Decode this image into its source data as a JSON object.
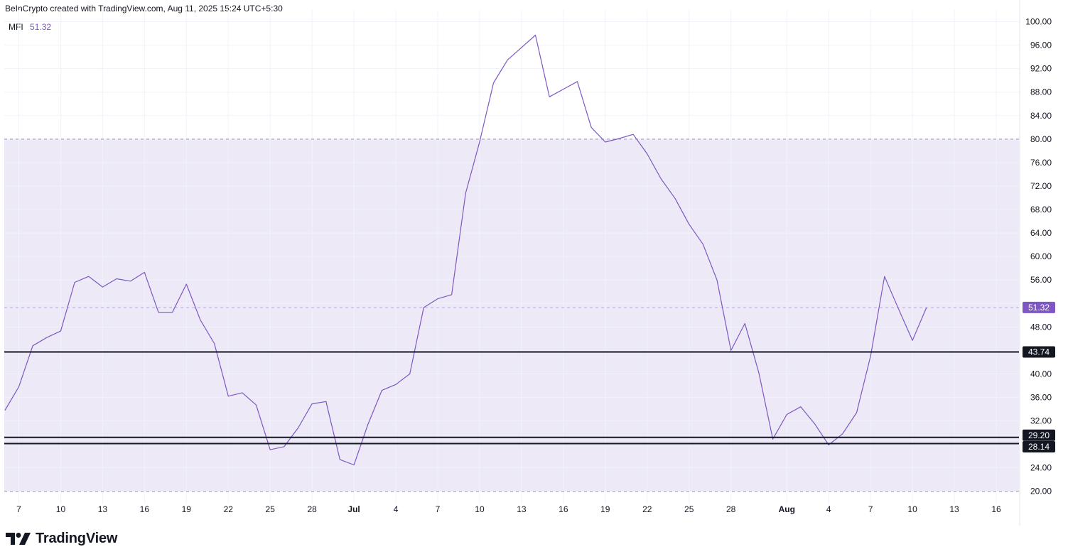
{
  "header": {
    "attribution": "BeInCrypto created with TradingView.com, Aug 11, 2025 15:24 UTC+5:30"
  },
  "legend": {
    "name": "MFI",
    "value": "51.32"
  },
  "footer": {
    "brand": "TradingView"
  },
  "colors": {
    "line": "#7e57c2",
    "band": "#ede9f7",
    "level": "#131722",
    "grid": "#f0f3fa",
    "axis_text": "#131722"
  },
  "chart_data": {
    "type": "line",
    "title": "",
    "xlabel": "",
    "ylabel": "",
    "ylim": [
      19,
      102
    ],
    "y_ticks": [
      20,
      24,
      28,
      32,
      36,
      40,
      44,
      48,
      52,
      56,
      60,
      64,
      68,
      72,
      76,
      80,
      84,
      88,
      92,
      96,
      100
    ],
    "y_tick_labels": [
      "20.00",
      "24.00",
      "28.00",
      "32.00",
      "36.00",
      "40.00",
      "",
      "48.00",
      "",
      "56.00",
      "60.00",
      "64.00",
      "68.00",
      "72.00",
      "76.00",
      "80.00",
      "84.00",
      "88.00",
      "92.00",
      "96.00",
      "100.00"
    ],
    "x_tick_labels": [
      {
        "d": 7,
        "label": "7"
      },
      {
        "d": 10,
        "label": "10"
      },
      {
        "d": 13,
        "label": "13"
      },
      {
        "d": 16,
        "label": "16"
      },
      {
        "d": 19,
        "label": "19"
      },
      {
        "d": 22,
        "label": "22"
      },
      {
        "d": 25,
        "label": "25"
      },
      {
        "d": 28,
        "label": "28"
      },
      {
        "d": 31,
        "label": "Jul",
        "bold": true
      },
      {
        "d": 34,
        "label": "4"
      },
      {
        "d": 37,
        "label": "7"
      },
      {
        "d": 40,
        "label": "10"
      },
      {
        "d": 43,
        "label": "13"
      },
      {
        "d": 46,
        "label": "16"
      },
      {
        "d": 49,
        "label": "19"
      },
      {
        "d": 52,
        "label": "22"
      },
      {
        "d": 55,
        "label": "25"
      },
      {
        "d": 58,
        "label": "28"
      },
      {
        "d": 62,
        "label": "Aug",
        "bold": true
      },
      {
        "d": 65,
        "label": "4"
      },
      {
        "d": 68,
        "label": "7"
      },
      {
        "d": 71,
        "label": "10"
      },
      {
        "d": 74,
        "label": "13"
      },
      {
        "d": 77,
        "label": "16"
      }
    ],
    "band": {
      "upper": 80,
      "lower": 20
    },
    "horizontal_levels": [
      43.74,
      29.2,
      28.14
    ],
    "level_labels": [
      "43.74",
      "29.20",
      "28.14"
    ],
    "last_value_label": "51.32",
    "last_value": 51.32,
    "series": [
      {
        "x": [
          6,
          7,
          8,
          9,
          10,
          11,
          12,
          13,
          14,
          15,
          16,
          17,
          18,
          19,
          20,
          21,
          22,
          23,
          24,
          25,
          26,
          27,
          28,
          29,
          30,
          31,
          32,
          33,
          34,
          35,
          36,
          37,
          38,
          39,
          40,
          41,
          42,
          43,
          44,
          45,
          46,
          47,
          48,
          49,
          50,
          51,
          52,
          53,
          54,
          55,
          56,
          57,
          58,
          59,
          60,
          61,
          62,
          63,
          64,
          65,
          66,
          67,
          68,
          69,
          70,
          71,
          72
        ],
        "y": [
          33.8,
          37.8,
          44.8,
          46.2,
          47.3,
          55.6,
          56.6,
          54.8,
          56.2,
          55.8,
          57.3,
          50.5,
          50.5,
          55.3,
          49.2,
          45.2,
          36.2,
          36.8,
          34.7,
          27.1,
          27.6,
          30.8,
          34.9,
          35.3,
          25.4,
          24.5,
          31.4,
          37.2,
          38.2,
          40.0,
          51.3,
          52.8,
          53.5,
          70.8,
          79.5,
          89.6,
          93.5,
          95.6,
          97.7,
          87.2,
          88.5,
          89.8,
          82.0,
          79.5,
          80.1,
          80.8,
          77.5,
          73.2,
          69.9,
          65.5,
          62.1,
          56.0,
          44.0,
          48.6,
          40.2,
          28.9,
          33.1,
          34.4,
          31.5,
          27.9,
          29.8,
          33.4,
          43.0,
          56.6,
          51.1,
          45.7,
          51.3
        ]
      }
    ]
  }
}
